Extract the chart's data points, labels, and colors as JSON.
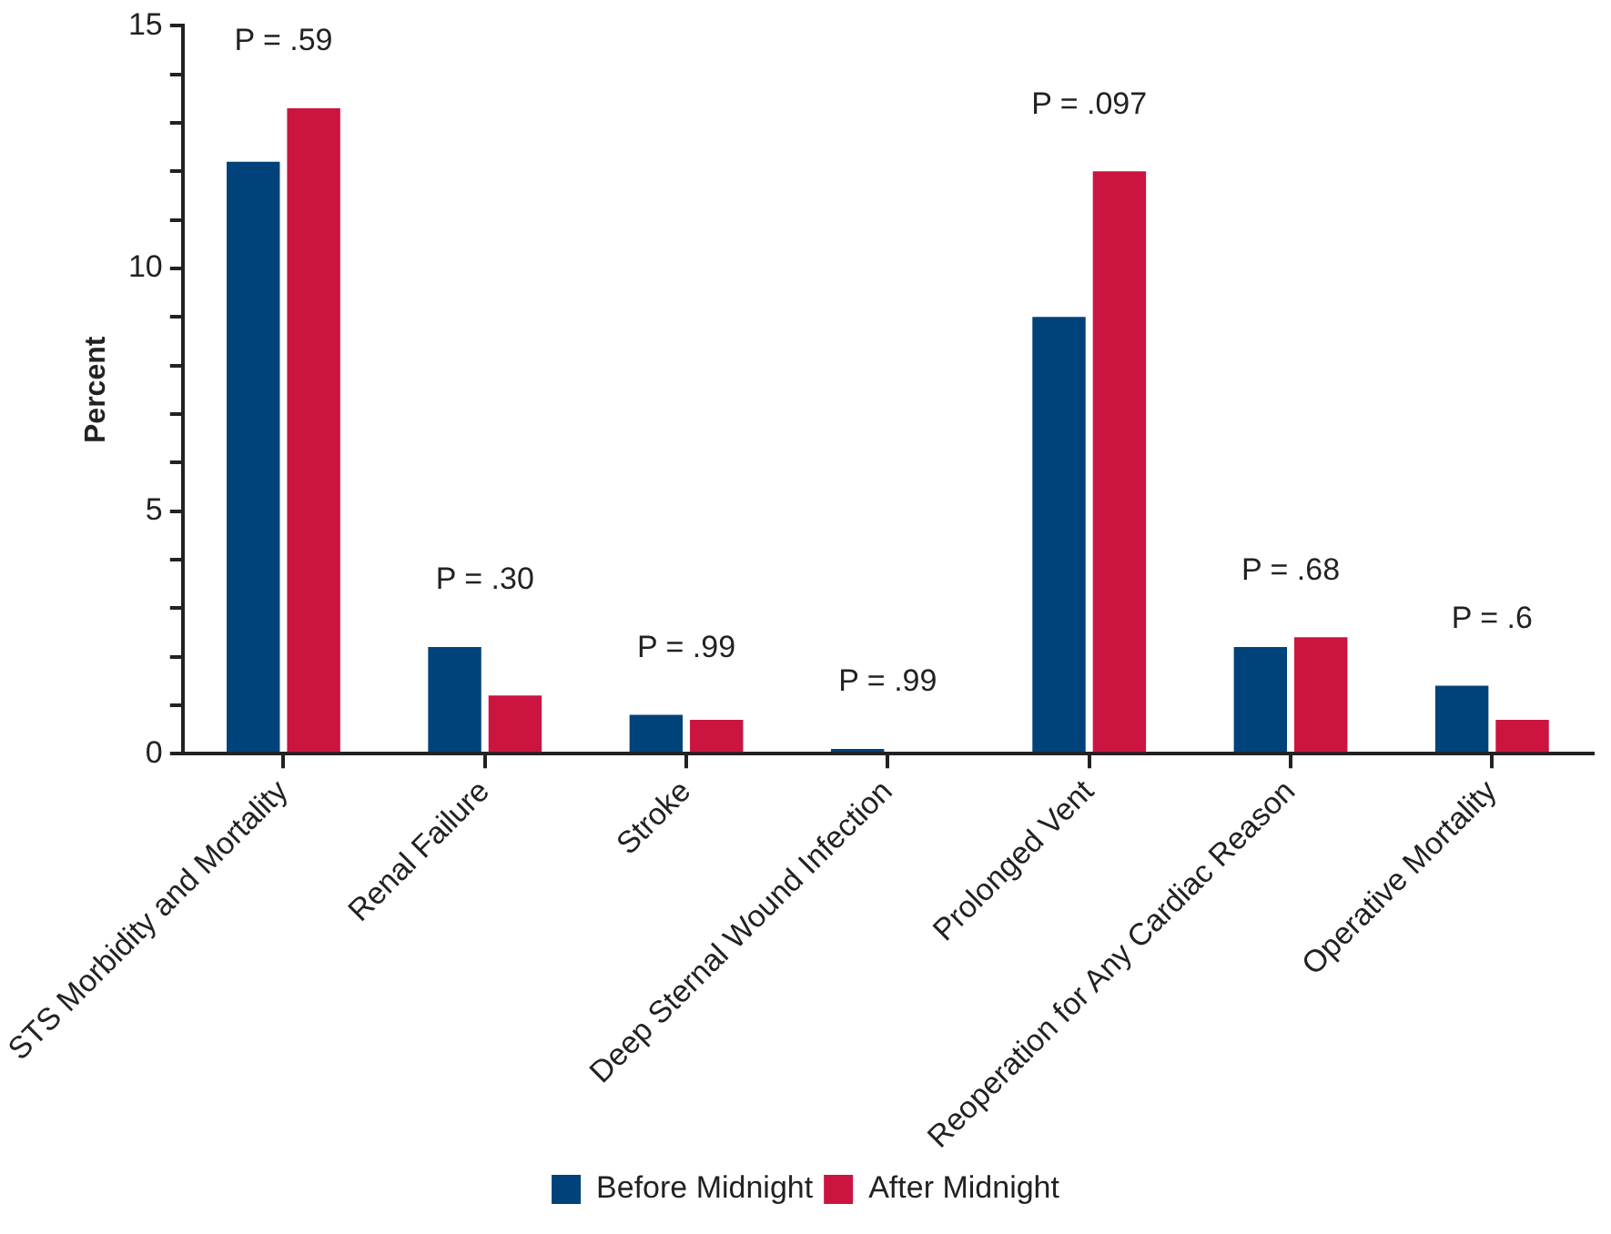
{
  "chart_data": {
    "type": "bar",
    "ylabel": "Percent",
    "categories": [
      "STS Morbidity and Mortality",
      "Renal Failure",
      "Stroke",
      "Deep Sternal Wound Infection",
      "Prolonged Vent",
      "Reoperation for Any Cardiac Reason",
      "Operative Mortality"
    ],
    "series": [
      {
        "name": "Before Midnight",
        "color": "#00427a",
        "values": [
          12.2,
          2.2,
          0.8,
          0.1,
          9.0,
          2.2,
          1.4
        ]
      },
      {
        "name": "After Midnight",
        "color": "#cc1440",
        "values": [
          13.3,
          1.2,
          0.7,
          0,
          12.0,
          2.4,
          0.7
        ]
      }
    ],
    "ylim": [
      0,
      15
    ],
    "yticks": [
      0,
      {
        "value": 1,
        "label": null
      },
      {
        "value": 2,
        "label": null
      },
      {
        "value": 3,
        "label": null
      },
      {
        "value": 4,
        "label": null
      },
      5,
      {
        "value": 6,
        "label": null
      },
      {
        "value": 7,
        "label": null
      },
      {
        "value": 8,
        "label": null
      },
      {
        "value": 9,
        "label": null
      },
      10,
      {
        "value": 11,
        "label": null
      },
      {
        "value": 12,
        "label": null
      },
      {
        "value": 13,
        "label": null
      },
      {
        "value": 14,
        "label": null
      },
      15
    ],
    "annotations": [
      "P = .59",
      "P = .30",
      "P = .99",
      "P = .99",
      "P = .097",
      "P = .68",
      "P = .6"
    ],
    "grid": false,
    "legend": "bottom"
  }
}
